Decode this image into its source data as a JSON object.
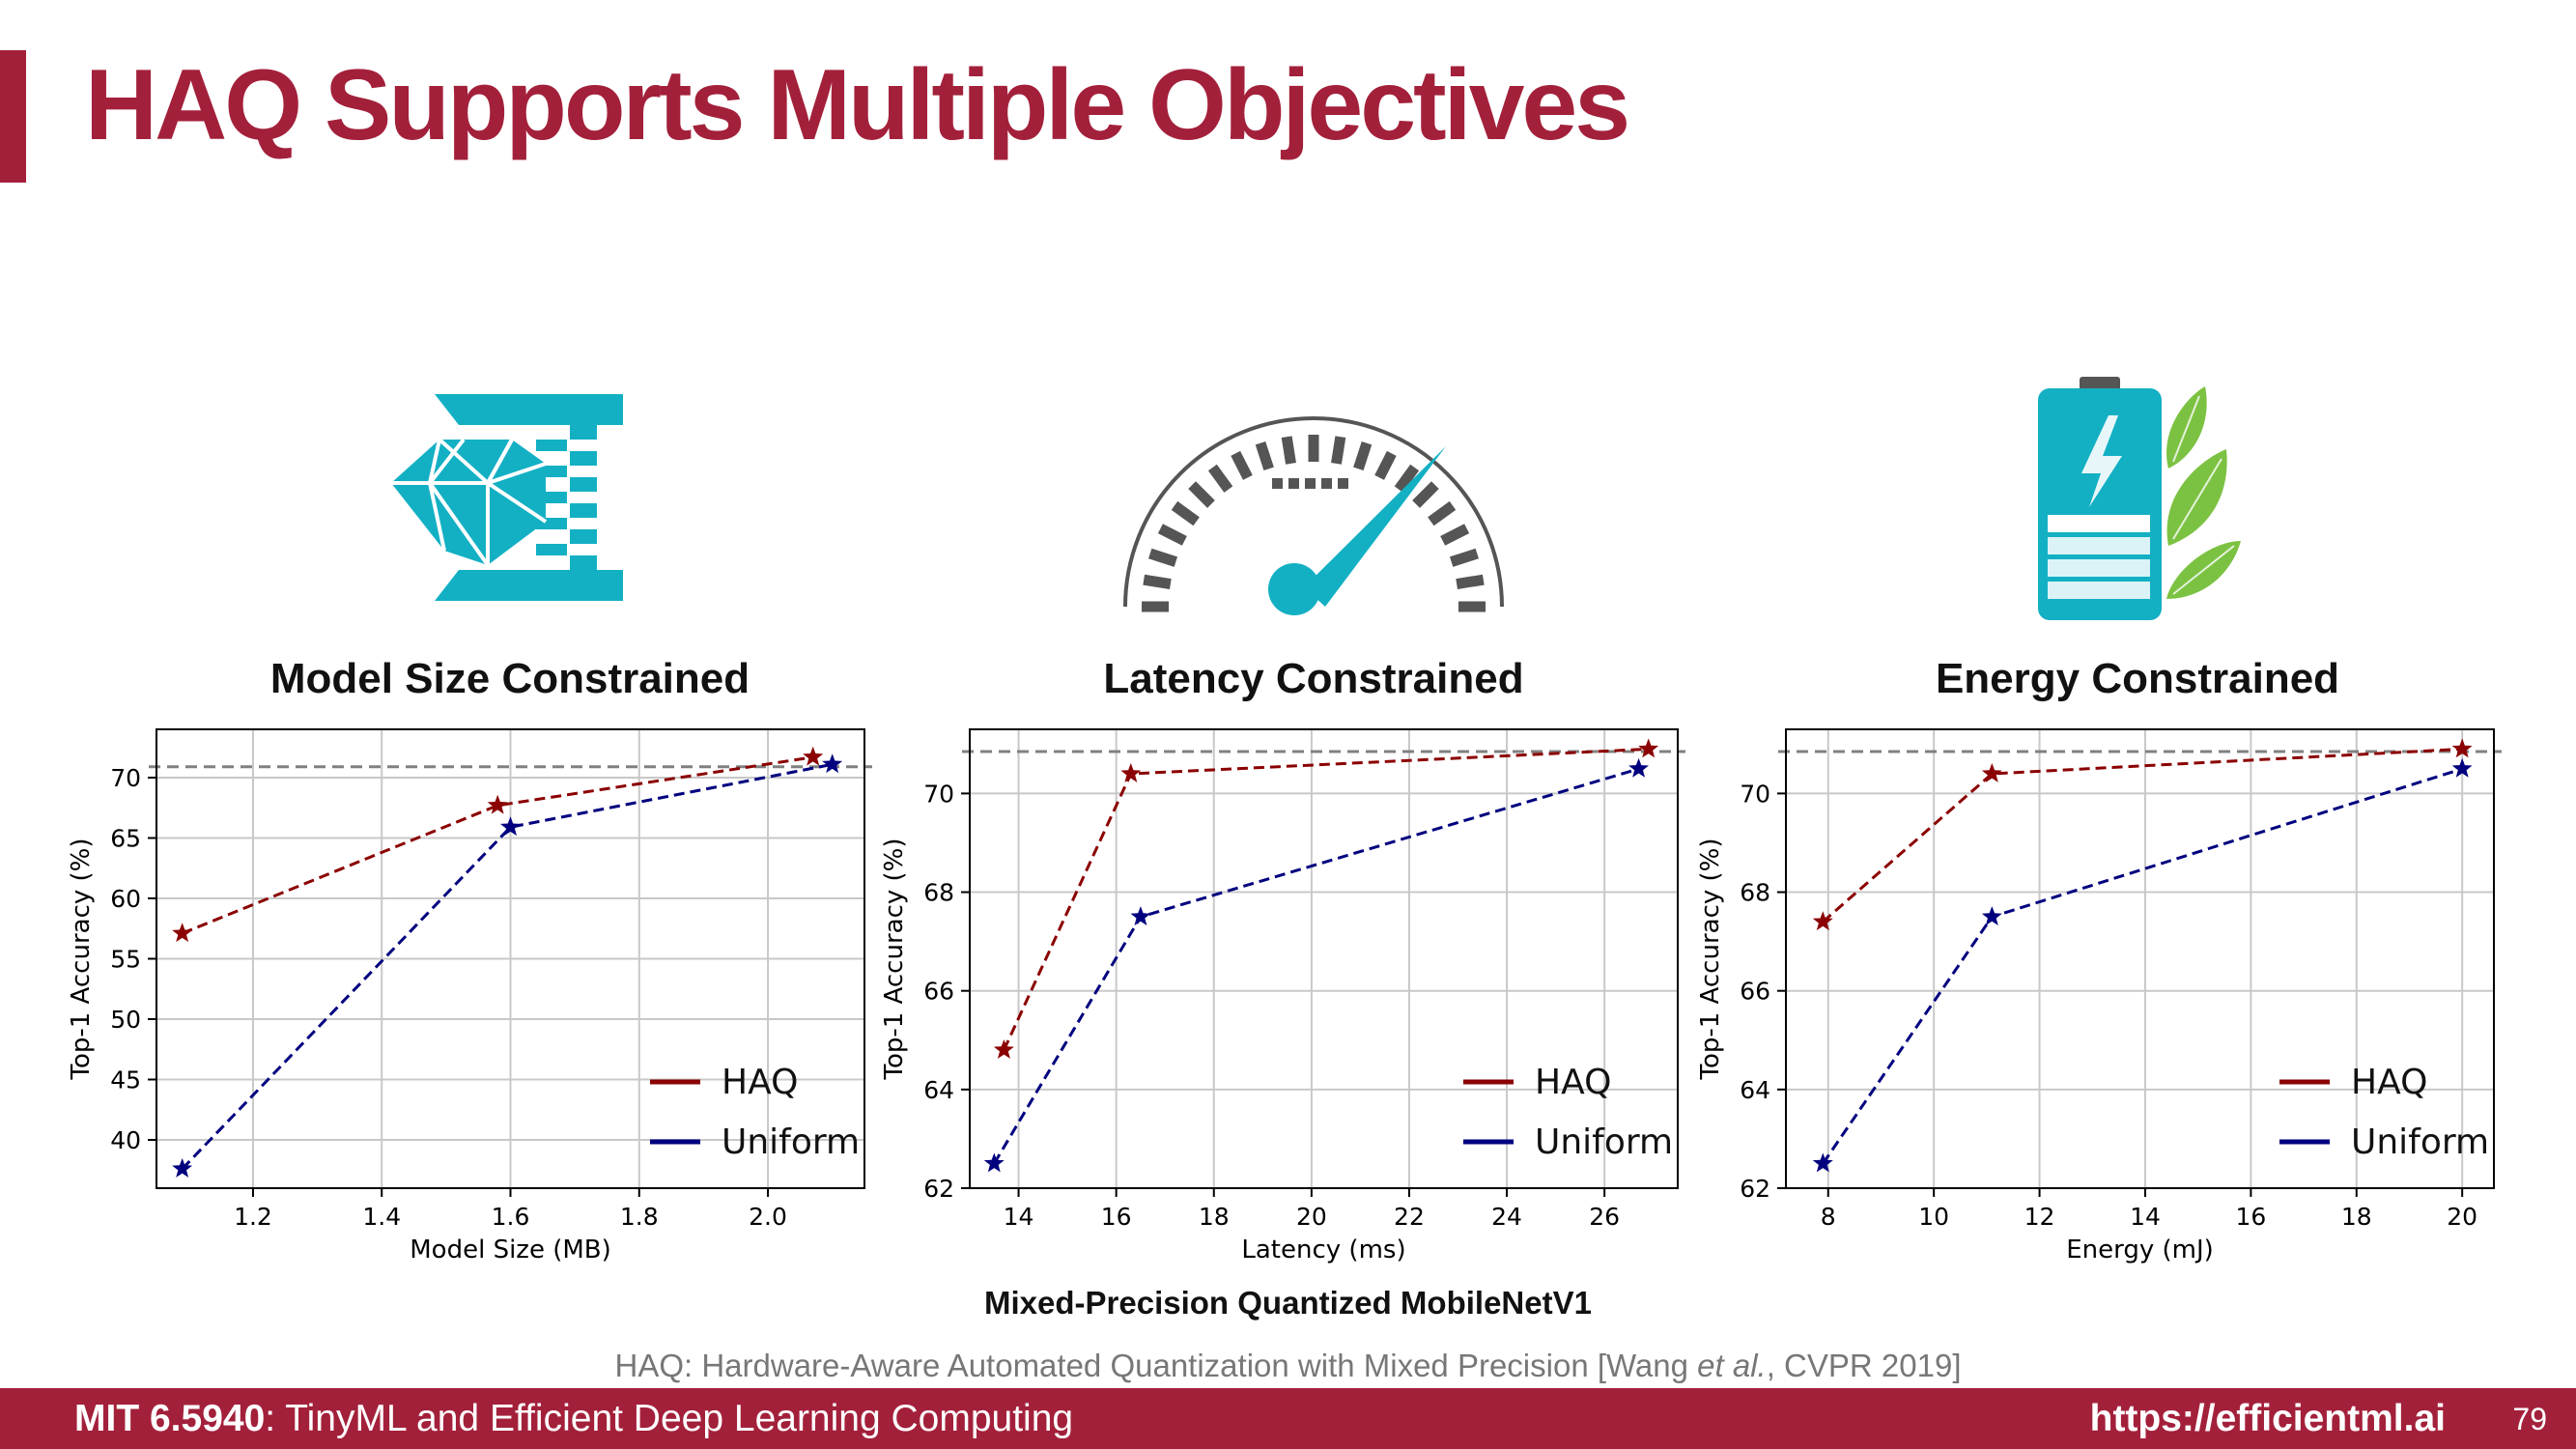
{
  "slide": {
    "title": "HAQ Supports Multiple Objectives",
    "subcaption": "Mixed-Precision Quantized MobileNetV1",
    "citation_prefix": "HAQ: Hardware-Aware Automated Quantization with Mixed Precision [Wang ",
    "citation_italic": "et al.",
    "citation_suffix": ", CVPR 2019]"
  },
  "footer": {
    "course_code": "MIT 6.5940",
    "course_name": ": TinyML and Efficient Deep Learning Computing",
    "url": "https://efficientml.ai",
    "page": "79"
  },
  "icons": [
    "diamond-compress-icon",
    "speedometer-icon",
    "battery-leaf-icon"
  ],
  "colors": {
    "brand": "#a3203b",
    "haq": "#8b0000",
    "uniform": "#00007f",
    "icon": "#13b0c4",
    "leaf": "#7cc242"
  },
  "chart_data": [
    {
      "type": "line",
      "panel_title": "Model Size Constrained",
      "xlabel": "Model Size (MB)",
      "ylabel": "Top-1 Accuracy (%)",
      "xlim": [
        1.05,
        2.15
      ],
      "ylim": [
        36,
        74
      ],
      "xticks": [
        1.2,
        1.4,
        1.6,
        1.8,
        2.0
      ],
      "xtick_labels": [
        "1.2",
        "1.4",
        "1.6",
        "1.8",
        "2.0"
      ],
      "yticks": [
        40,
        45,
        50,
        55,
        60,
        65,
        70
      ],
      "ytick_labels": [
        "40",
        "45",
        "50",
        "55",
        "60",
        "65",
        "70"
      ],
      "reference_y": 70.9,
      "grid": true,
      "legend": "lower-right",
      "series": [
        {
          "name": "HAQ",
          "x": [
            1.09,
            1.58,
            2.07
          ],
          "y": [
            57.1,
            67.7,
            71.7
          ]
        },
        {
          "name": "Uniform",
          "x": [
            1.09,
            1.6,
            2.1
          ],
          "y": [
            37.6,
            65.9,
            71.1
          ]
        }
      ]
    },
    {
      "type": "line",
      "panel_title": "Latency Constrained",
      "xlabel": "Latency (ms)",
      "ylabel": "Top-1 Accuracy (%)",
      "xlim": [
        13.0,
        27.5
      ],
      "ylim": [
        62,
        71.3
      ],
      "xticks": [
        14,
        16,
        18,
        20,
        22,
        24,
        26
      ],
      "xtick_labels": [
        "14",
        "16",
        "18",
        "20",
        "22",
        "24",
        "26"
      ],
      "yticks": [
        62,
        64,
        66,
        68,
        70
      ],
      "ytick_labels": [
        "62",
        "64",
        "66",
        "68",
        "70"
      ],
      "reference_y": 70.85,
      "grid": true,
      "legend": "lower-right",
      "series": [
        {
          "name": "HAQ",
          "x": [
            13.7,
            16.3,
            26.9
          ],
          "y": [
            64.8,
            70.4,
            70.9
          ]
        },
        {
          "name": "Uniform",
          "x": [
            13.5,
            16.5,
            26.7
          ],
          "y": [
            62.5,
            67.5,
            70.5
          ]
        }
      ]
    },
    {
      "type": "line",
      "panel_title": "Energy Constrained",
      "xlabel": "Energy (mJ)",
      "ylabel": "Top-1 Accuracy (%)",
      "xlim": [
        7.2,
        20.6
      ],
      "ylim": [
        62,
        71.3
      ],
      "xticks": [
        8,
        10,
        12,
        14,
        16,
        18,
        20
      ],
      "xtick_labels": [
        "8",
        "10",
        "12",
        "14",
        "16",
        "18",
        "20"
      ],
      "yticks": [
        62,
        64,
        66,
        68,
        70
      ],
      "ytick_labels": [
        "62",
        "64",
        "66",
        "68",
        "70"
      ],
      "reference_y": 70.85,
      "grid": true,
      "legend": "lower-right",
      "series": [
        {
          "name": "HAQ",
          "x": [
            7.9,
            11.1,
            20.0
          ],
          "y": [
            67.4,
            70.4,
            70.9
          ]
        },
        {
          "name": "Uniform",
          "x": [
            7.9,
            11.1,
            20.0
          ],
          "y": [
            62.5,
            67.5,
            70.5
          ]
        }
      ]
    }
  ]
}
